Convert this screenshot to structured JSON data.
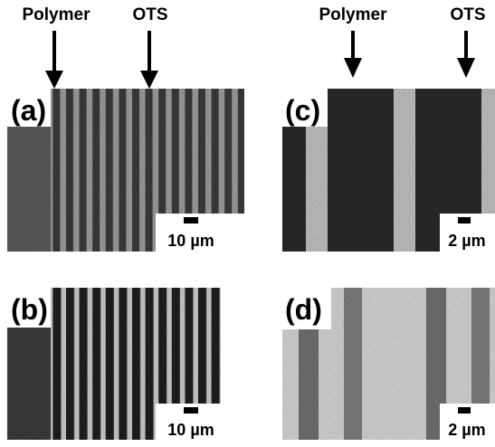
{
  "annotations": {
    "left": {
      "polymer": "Polymer",
      "ots": "OTS"
    },
    "right": {
      "polymer": "Polymer",
      "ots": "OTS"
    }
  },
  "panels": [
    {
      "label": "(a)",
      "scale": "10 µm"
    },
    {
      "label": "(b)",
      "scale": "10 µm"
    },
    {
      "label": "(c)",
      "scale": "2 µm"
    },
    {
      "label": "(d)",
      "scale": "2 µm"
    }
  ]
}
